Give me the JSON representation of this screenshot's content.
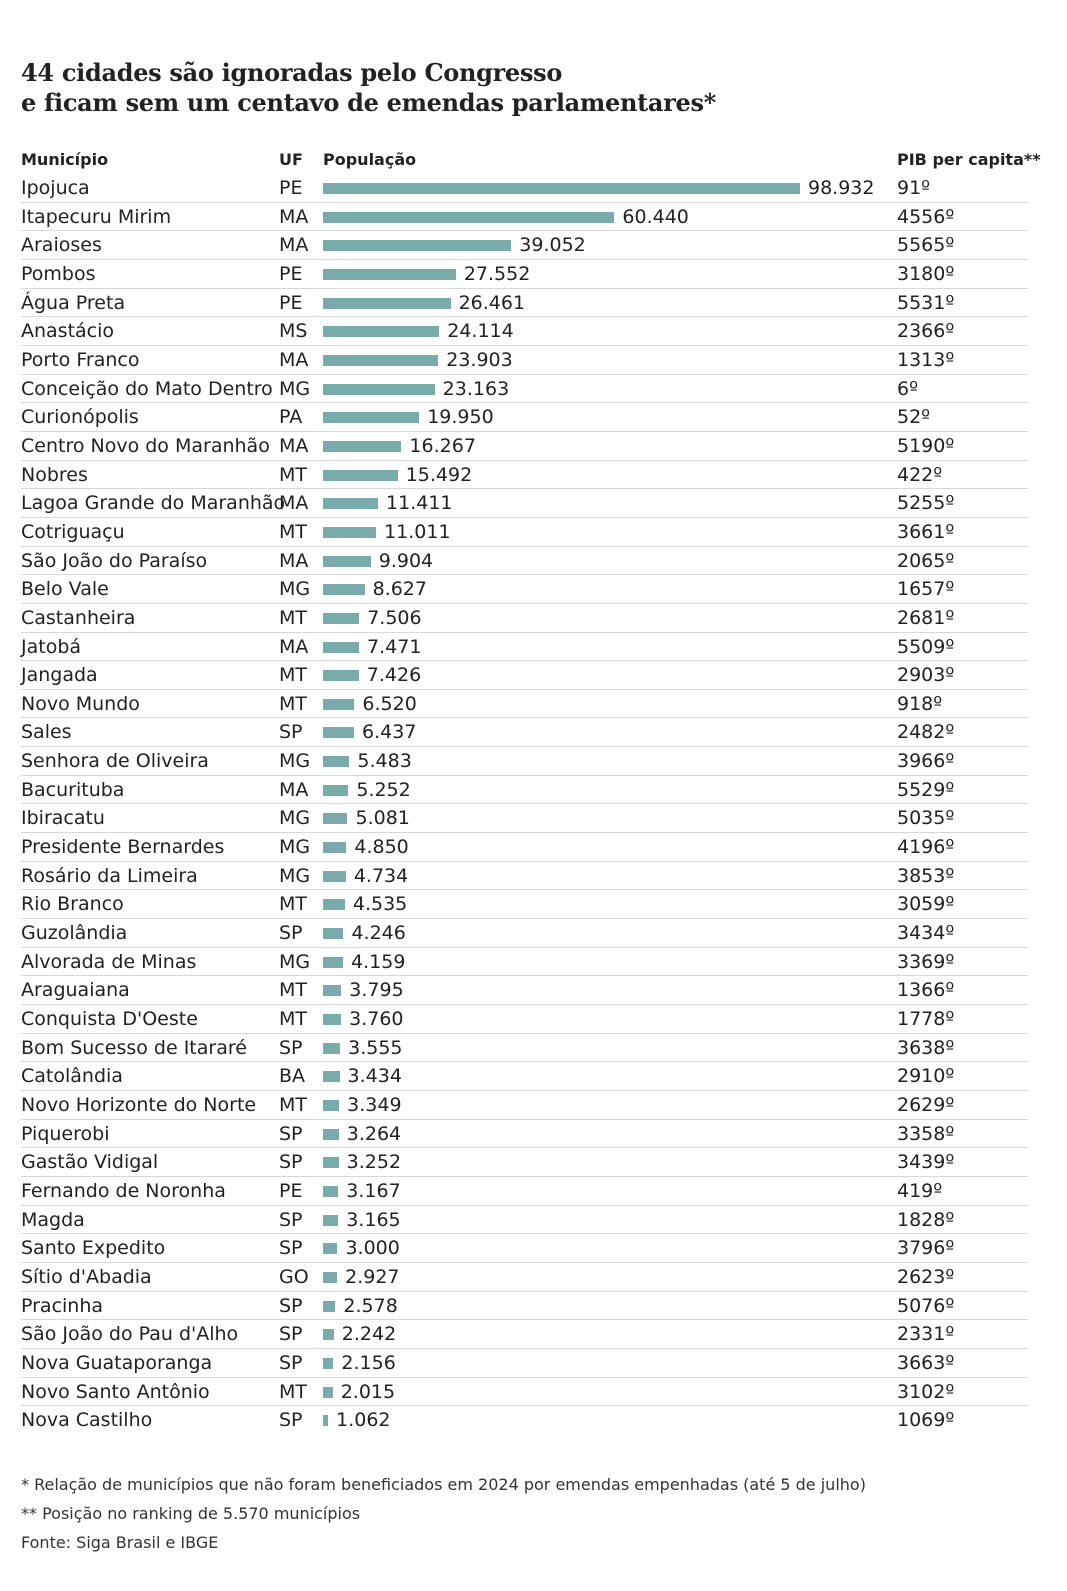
{
  "title_line1": "44 cidades são ignoradas pelo Congresso",
  "title_line2": "e ficam sem um centavo de emendas parlamentares*",
  "headers": {
    "municipio": "Município",
    "uf": "UF",
    "populacao": "População",
    "pib": "PIB per capita**"
  },
  "bar_color": "#7aabab",
  "chart_data": {
    "type": "bar",
    "title": "44 cidades são ignoradas pelo Congresso e ficam sem um centavo de emendas parlamentares*",
    "xlabel": "População",
    "rows": [
      {
        "name": "Ipojuca",
        "uf": "PE",
        "pop": 98932,
        "label": "98.932",
        "pib": "91º"
      },
      {
        "name": "Itapecuru Mirim",
        "uf": "MA",
        "pop": 60440,
        "label": "60.440",
        "pib": "4556º"
      },
      {
        "name": "Araioses",
        "uf": "MA",
        "pop": 39052,
        "label": "39.052",
        "pib": "5565º"
      },
      {
        "name": "Pombos",
        "uf": "PE",
        "pop": 27552,
        "label": "27.552",
        "pib": "3180º"
      },
      {
        "name": "Água Preta",
        "uf": "PE",
        "pop": 26461,
        "label": "26.461",
        "pib": "5531º"
      },
      {
        "name": "Anastácio",
        "uf": "MS",
        "pop": 24114,
        "label": "24.114",
        "pib": "2366º"
      },
      {
        "name": "Porto Franco",
        "uf": "MA",
        "pop": 23903,
        "label": "23.903",
        "pib": "1313º"
      },
      {
        "name": "Conceição do Mato Dentro",
        "uf": "MG",
        "pop": 23163,
        "label": "23.163",
        "pib": "6º"
      },
      {
        "name": "Curionópolis",
        "uf": "PA",
        "pop": 19950,
        "label": "19.950",
        "pib": "52º"
      },
      {
        "name": "Centro Novo do Maranhão",
        "uf": "MA",
        "pop": 16267,
        "label": "16.267",
        "pib": "5190º"
      },
      {
        "name": "Nobres",
        "uf": "MT",
        "pop": 15492,
        "label": "15.492",
        "pib": "422º"
      },
      {
        "name": "Lagoa Grande do Maranhão",
        "uf": "MA",
        "pop": 11411,
        "label": "11.411",
        "pib": "5255º"
      },
      {
        "name": "Cotriguaçu",
        "uf": "MT",
        "pop": 11011,
        "label": "11.011",
        "pib": "3661º"
      },
      {
        "name": "São João do Paraíso",
        "uf": "MA",
        "pop": 9904,
        "label": "9.904",
        "pib": "2065º"
      },
      {
        "name": "Belo Vale",
        "uf": "MG",
        "pop": 8627,
        "label": "8.627",
        "pib": "1657º"
      },
      {
        "name": "Castanheira",
        "uf": "MT",
        "pop": 7506,
        "label": "7.506",
        "pib": "2681º"
      },
      {
        "name": "Jatobá",
        "uf": "MA",
        "pop": 7471,
        "label": "7.471",
        "pib": "5509º"
      },
      {
        "name": "Jangada",
        "uf": "MT",
        "pop": 7426,
        "label": "7.426",
        "pib": "2903º"
      },
      {
        "name": "Novo Mundo",
        "uf": "MT",
        "pop": 6520,
        "label": "6.520",
        "pib": "918º"
      },
      {
        "name": "Sales",
        "uf": "SP",
        "pop": 6437,
        "label": "6.437",
        "pib": "2482º"
      },
      {
        "name": "Senhora de Oliveira",
        "uf": "MG",
        "pop": 5483,
        "label": "5.483",
        "pib": "3966º"
      },
      {
        "name": "Bacurituba",
        "uf": "MA",
        "pop": 5252,
        "label": "5.252",
        "pib": "5529º"
      },
      {
        "name": "Ibiracatu",
        "uf": "MG",
        "pop": 5081,
        "label": "5.081",
        "pib": "5035º"
      },
      {
        "name": "Presidente Bernardes",
        "uf": "MG",
        "pop": 4850,
        "label": "4.850",
        "pib": "4196º"
      },
      {
        "name": "Rosário da Limeira",
        "uf": "MG",
        "pop": 4734,
        "label": "4.734",
        "pib": "3853º"
      },
      {
        "name": "Rio Branco",
        "uf": "MT",
        "pop": 4535,
        "label": "4.535",
        "pib": "3059º"
      },
      {
        "name": "Guzolândia",
        "uf": "SP",
        "pop": 4246,
        "label": "4.246",
        "pib": "3434º"
      },
      {
        "name": "Alvorada de Minas",
        "uf": "MG",
        "pop": 4159,
        "label": "4.159",
        "pib": "3369º"
      },
      {
        "name": "Araguaiana",
        "uf": "MT",
        "pop": 3795,
        "label": "3.795",
        "pib": "1366º"
      },
      {
        "name": "Conquista D'Oeste",
        "uf": "MT",
        "pop": 3760,
        "label": "3.760",
        "pib": "1778º"
      },
      {
        "name": "Bom Sucesso de Itararé",
        "uf": "SP",
        "pop": 3555,
        "label": "3.555",
        "pib": "3638º"
      },
      {
        "name": "Catolândia",
        "uf": "BA",
        "pop": 3434,
        "label": "3.434",
        "pib": "2910º"
      },
      {
        "name": "Novo Horizonte do Norte",
        "uf": "MT",
        "pop": 3349,
        "label": "3.349",
        "pib": "2629º"
      },
      {
        "name": "Piquerobi",
        "uf": "SP",
        "pop": 3264,
        "label": "3.264",
        "pib": "3358º"
      },
      {
        "name": "Gastão Vidigal",
        "uf": "SP",
        "pop": 3252,
        "label": "3.252",
        "pib": "3439º"
      },
      {
        "name": "Fernando de Noronha",
        "uf": "PE",
        "pop": 3167,
        "label": "3.167",
        "pib": "419º"
      },
      {
        "name": "Magda",
        "uf": "SP",
        "pop": 3165,
        "label": "3.165",
        "pib": "1828º"
      },
      {
        "name": "Santo Expedito",
        "uf": "SP",
        "pop": 3000,
        "label": "3.000",
        "pib": "3796º"
      },
      {
        "name": "Sítio d'Abadia",
        "uf": "GO",
        "pop": 2927,
        "label": "2.927",
        "pib": "2623º"
      },
      {
        "name": "Pracinha",
        "uf": "SP",
        "pop": 2578,
        "label": "2.578",
        "pib": "5076º"
      },
      {
        "name": "São João do Pau d'Alho",
        "uf": "SP",
        "pop": 2242,
        "label": "2.242",
        "pib": "2331º"
      },
      {
        "name": "Nova Guataporanga",
        "uf": "SP",
        "pop": 2156,
        "label": "2.156",
        "pib": "3663º"
      },
      {
        "name": "Novo Santo Antônio",
        "uf": "MT",
        "pop": 2015,
        "label": "2.015",
        "pib": "3102º"
      },
      {
        "name": "Nova Castilho",
        "uf": "SP",
        "pop": 1062,
        "label": "1.062",
        "pib": "1069º"
      }
    ]
  },
  "notes": [
    "* Relação de municípios que não foram beneficiados em 2024 por emendas empenhadas (até 5 de julho)",
    "** Posição no ranking de 5.570 municípios",
    "Fonte: Siga Brasil e IBGE"
  ]
}
